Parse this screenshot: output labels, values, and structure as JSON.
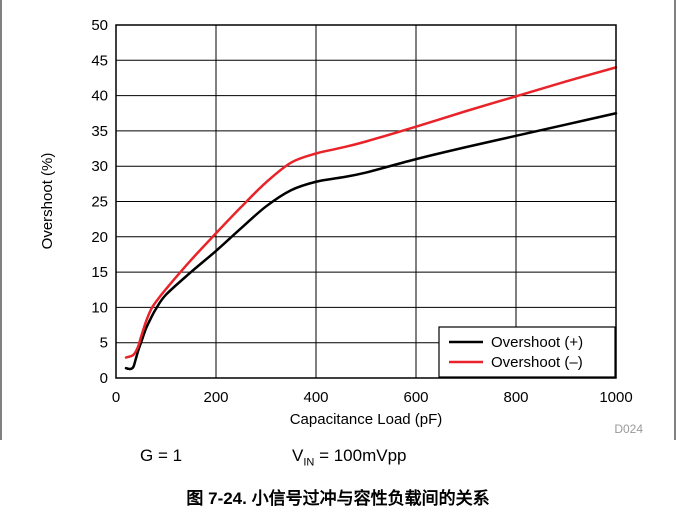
{
  "chart_data": {
    "type": "line",
    "title": "",
    "xlabel": "Capacitance Load (pF)",
    "ylabel": "Overshoot (%)",
    "xlim": [
      0,
      1000
    ],
    "ylim": [
      0,
      50
    ],
    "x_ticks": [
      "0",
      "200",
      "400",
      "600",
      "800",
      "1000"
    ],
    "y_ticks": [
      "0",
      "5",
      "10",
      "15",
      "20",
      "25",
      "30",
      "35",
      "40",
      "45",
      "50"
    ],
    "grid": true,
    "legend_position": "bottom-right",
    "watermark": "D024",
    "series": [
      {
        "name": "Overshoot (+)",
        "color": "#000000",
        "x": [
          20,
          25,
          30,
          35,
          40,
          45,
          50,
          60,
          70,
          80,
          100,
          150,
          200,
          250,
          300,
          350,
          400,
          450,
          500,
          600,
          700,
          800,
          900,
          1000
        ],
        "y": [
          1.4,
          1.3,
          1.3,
          1.6,
          2.8,
          4.0,
          5.0,
          7.0,
          8.5,
          9.8,
          11.8,
          15.0,
          18.0,
          21.2,
          24.3,
          26.6,
          27.8,
          28.4,
          29.1,
          31.0,
          32.7,
          34.3,
          35.9,
          37.5
        ]
      },
      {
        "name": "Overshoot (–)",
        "color": "#e8232a",
        "x": [
          20,
          25,
          30,
          35,
          40,
          45,
          50,
          60,
          70,
          80,
          100,
          150,
          200,
          250,
          300,
          350,
          400,
          450,
          500,
          600,
          700,
          800,
          900,
          1000
        ],
        "y": [
          2.9,
          3.0,
          3.1,
          3.3,
          3.8,
          4.6,
          5.8,
          8.0,
          9.7,
          10.8,
          12.6,
          16.7,
          20.5,
          24.2,
          27.7,
          30.5,
          31.8,
          32.6,
          33.5,
          35.6,
          37.8,
          39.9,
          42.0,
          44.0
        ]
      }
    ]
  },
  "conditions": {
    "gain": "G = 1",
    "vin_prefix": "V",
    "vin_sub": "IN",
    "vin_suffix": " = 100mVpp"
  },
  "caption": "图 7-24. 小信号过冲与容性负载间的关系"
}
